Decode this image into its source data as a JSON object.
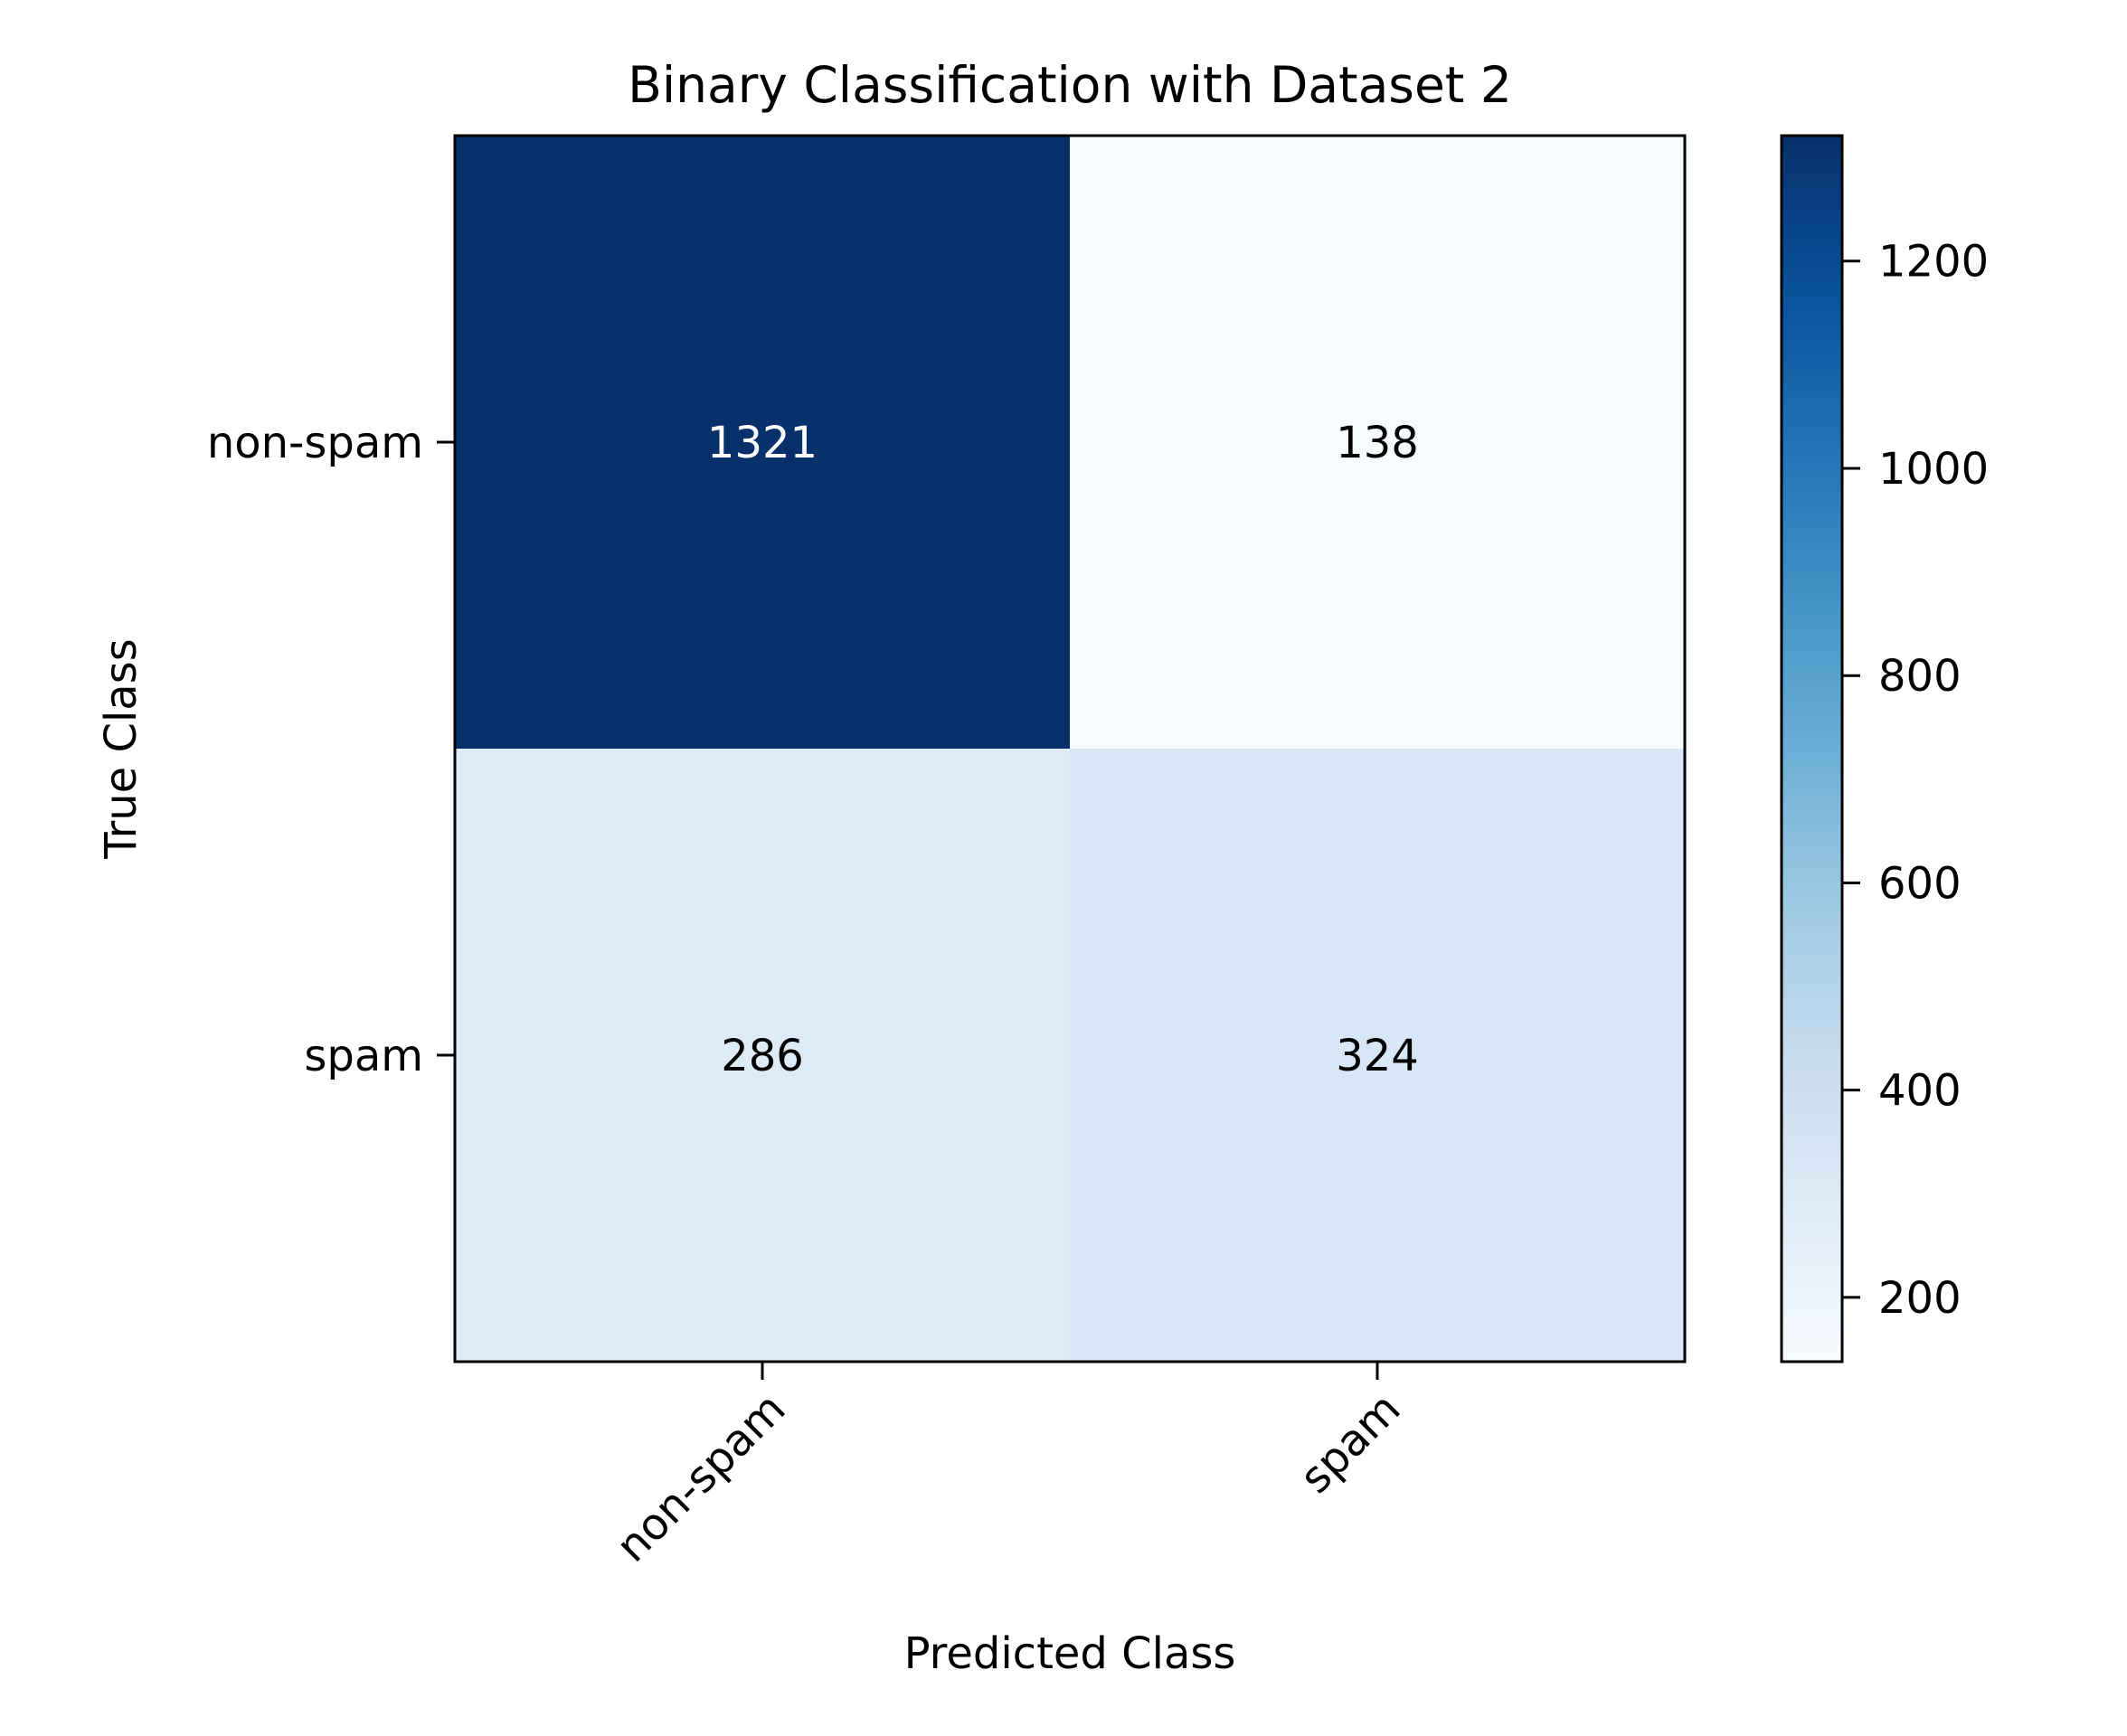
{
  "chart_data": {
    "type": "heatmap",
    "title": "Binary Classification with Dataset 2",
    "xlabel": "Predicted Class",
    "ylabel": "True Class",
    "x_categories": [
      "non-spam",
      "spam"
    ],
    "y_categories": [
      "non-spam",
      "spam"
    ],
    "values": [
      [
        1321,
        138
      ],
      [
        286,
        324
      ]
    ],
    "colormap": "Blues",
    "color_range": [
      138,
      1321
    ],
    "colorbar_ticks": [
      200,
      400,
      600,
      800,
      1000,
      1200
    ],
    "annotation_colors": {
      "on_dark": "#ffffff",
      "on_light": "#000000"
    },
    "grid": false
  }
}
